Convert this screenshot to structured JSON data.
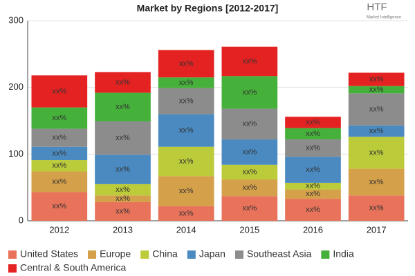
{
  "chart_data": {
    "type": "stacked-bar",
    "title": "Market by Regions [2012-2017]",
    "logo_text": "HTF",
    "logo_subtext": "Market Intelligence",
    "categories": [
      "2012",
      "2013",
      "2014",
      "2015",
      "2016",
      "2017"
    ],
    "ylim": [
      0,
      300
    ],
    "yticks": [
      0,
      100,
      200,
      300
    ],
    "grid": true,
    "series": [
      {
        "name": "United States",
        "color": "#e8735a",
        "values": [
          43,
          28,
          22,
          37,
          33,
          38
        ],
        "value_labels": [
          "xx%",
          "xx%",
          "xx%",
          "xx%",
          "xx%",
          "xx%"
        ]
      },
      {
        "name": "Europe",
        "color": "#d4a04a",
        "values": [
          31,
          10,
          45,
          25,
          14,
          40
        ],
        "value_labels": [
          "xx%",
          "xx%",
          "xx%",
          "xx%",
          "xx%",
          "xx%"
        ]
      },
      {
        "name": "China",
        "color": "#bccb3a",
        "values": [
          17,
          17,
          44,
          22,
          10,
          48
        ],
        "value_labels": [
          "xx%",
          "xx%",
          "xx%",
          "xx%",
          "xx%",
          "xx%"
        ]
      },
      {
        "name": "Japan",
        "color": "#4a8ac0",
        "values": [
          20,
          44,
          49,
          38,
          39,
          17
        ],
        "value_labels": [
          "xx%",
          "xx%",
          "xx%",
          "xx%",
          "xx%",
          "xx%"
        ]
      },
      {
        "name": "Southeast Asia",
        "color": "#8c8c8c",
        "values": [
          27,
          50,
          39,
          46,
          26,
          48
        ],
        "value_labels": [
          "xx%",
          "xx%",
          "xx%",
          "xx%",
          "xx%",
          "xx%"
        ]
      },
      {
        "name": "India",
        "color": "#45b03a",
        "values": [
          32,
          43,
          16,
          49,
          17,
          11
        ],
        "value_labels": [
          "xx%",
          "xx%",
          "xx%",
          "xx%",
          "xx%",
          "xx%"
        ]
      },
      {
        "name": "Central & South America",
        "color": "#e42222",
        "values": [
          48,
          31,
          41,
          44,
          17,
          20
        ],
        "value_labels": [
          "xx%",
          "xx%",
          "xx%",
          "xx%",
          "xx%",
          "xx%"
        ]
      }
    ]
  }
}
